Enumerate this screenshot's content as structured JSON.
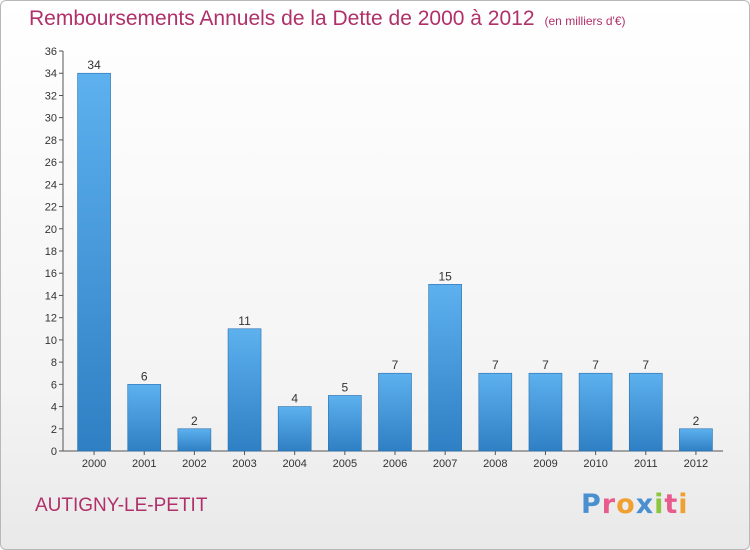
{
  "chart_data": {
    "type": "bar",
    "title": "Remboursements Annuels de la Dette de 2000 à 2012",
    "subtitle": "(en milliers d'€)",
    "categories": [
      "2000",
      "2001",
      "2002",
      "2003",
      "2004",
      "2005",
      "2006",
      "2007",
      "2008",
      "2009",
      "2010",
      "2011",
      "2012"
    ],
    "values": [
      34,
      6,
      2,
      11,
      4,
      5,
      7,
      15,
      7,
      7,
      7,
      7,
      2
    ],
    "ylim": [
      0,
      36
    ],
    "ytick_step": 2,
    "xlabel": "",
    "ylabel": "",
    "grid": false,
    "bar_color": "#4ea3e3"
  },
  "footer": {
    "commune": "AUTIGNY-LE-PETIT",
    "logo_letters": [
      "P",
      "r",
      "o",
      "x",
      "i",
      "t",
      "i"
    ],
    "logo_colors": [
      "#4a90d0",
      "#e85b8c",
      "#f0a030",
      "#4a90d0",
      "#8cc63f",
      "#e85b8c",
      "#f0a030"
    ]
  }
}
